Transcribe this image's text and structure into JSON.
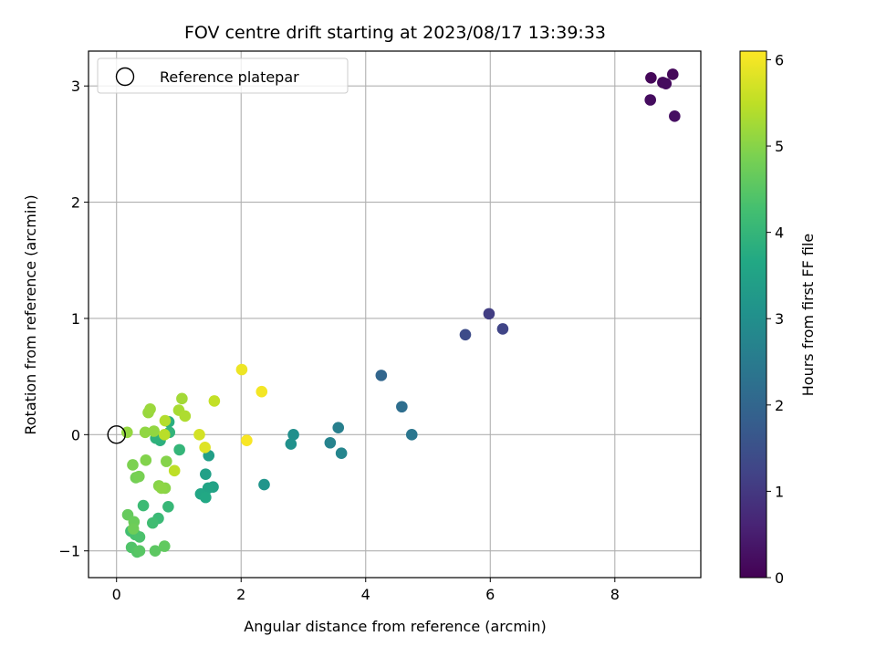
{
  "chart_data": {
    "type": "scatter",
    "title": "FOV centre drift starting at 2023/08/17 13:39:33",
    "xlabel": "Angular distance from reference (arcmin)",
    "ylabel": "Rotation from reference (arcmin)",
    "xlim": [
      -0.45,
      9.38
    ],
    "ylim": [
      -1.23,
      3.3
    ],
    "xticks": [
      0,
      2,
      4,
      6,
      8
    ],
    "yticks": [
      -1,
      0,
      1,
      2,
      3
    ],
    "grid": true,
    "legend": {
      "placement": "top-left",
      "entries": [
        "Reference platepar"
      ]
    },
    "reference_point": {
      "x": 0,
      "y": 0,
      "name": "Reference platepar"
    },
    "colormap": "viridis",
    "colorbar": {
      "label": "Hours from first FF file",
      "range": [
        0,
        6.1
      ],
      "ticks": [
        0,
        1,
        2,
        3,
        4,
        5,
        6
      ]
    },
    "points": [
      {
        "x": 8.58,
        "y": 3.07,
        "c": 0.1
      },
      {
        "x": 8.93,
        "y": 3.1,
        "c": 0.12
      },
      {
        "x": 8.77,
        "y": 3.03,
        "c": 0.15
      },
      {
        "x": 8.82,
        "y": 3.02,
        "c": 0.18
      },
      {
        "x": 8.57,
        "y": 2.88,
        "c": 0.2
      },
      {
        "x": 8.96,
        "y": 2.74,
        "c": 0.25
      },
      {
        "x": 5.98,
        "y": 1.04,
        "c": 1.1
      },
      {
        "x": 6.2,
        "y": 0.91,
        "c": 1.25
      },
      {
        "x": 5.6,
        "y": 0.86,
        "c": 1.4
      },
      {
        "x": 4.25,
        "y": 0.51,
        "c": 2.0
      },
      {
        "x": 4.58,
        "y": 0.24,
        "c": 2.2
      },
      {
        "x": 4.74,
        "y": 0.0,
        "c": 2.4
      },
      {
        "x": 3.56,
        "y": 0.06,
        "c": 2.6
      },
      {
        "x": 3.43,
        "y": -0.07,
        "c": 2.7
      },
      {
        "x": 3.61,
        "y": -0.16,
        "c": 2.75
      },
      {
        "x": 2.84,
        "y": 0.0,
        "c": 3.0
      },
      {
        "x": 2.8,
        "y": -0.08,
        "c": 3.05
      },
      {
        "x": 2.37,
        "y": -0.43,
        "c": 3.15
      },
      {
        "x": 1.48,
        "y": -0.18,
        "c": 3.4
      },
      {
        "x": 1.43,
        "y": -0.34,
        "c": 3.45
      },
      {
        "x": 1.55,
        "y": -0.45,
        "c": 3.5
      },
      {
        "x": 1.47,
        "y": -0.46,
        "c": 3.55
      },
      {
        "x": 1.35,
        "y": -0.51,
        "c": 3.6
      },
      {
        "x": 1.43,
        "y": -0.54,
        "c": 3.65
      },
      {
        "x": 0.84,
        "y": 0.11,
        "c": 3.8
      },
      {
        "x": 0.7,
        "y": -0.05,
        "c": 3.85
      },
      {
        "x": 0.63,
        "y": -0.03,
        "c": 3.9
      },
      {
        "x": 0.85,
        "y": 0.02,
        "c": 3.95
      },
      {
        "x": 1.01,
        "y": -0.13,
        "c": 4.0
      },
      {
        "x": 0.83,
        "y": -0.62,
        "c": 4.05
      },
      {
        "x": 0.67,
        "y": -0.72,
        "c": 4.1
      },
      {
        "x": 0.43,
        "y": -0.61,
        "c": 4.15
      },
      {
        "x": 0.58,
        "y": -0.76,
        "c": 4.2
      },
      {
        "x": 0.23,
        "y": -0.83,
        "c": 4.25
      },
      {
        "x": 0.3,
        "y": -0.86,
        "c": 4.3
      },
      {
        "x": 0.37,
        "y": -0.88,
        "c": 4.35
      },
      {
        "x": 0.24,
        "y": -0.97,
        "c": 4.4
      },
      {
        "x": 0.33,
        "y": -1.01,
        "c": 4.45
      },
      {
        "x": 0.37,
        "y": -1.0,
        "c": 4.5
      },
      {
        "x": 0.62,
        "y": -1.0,
        "c": 4.55
      },
      {
        "x": 0.77,
        "y": -0.96,
        "c": 4.6
      },
      {
        "x": 0.18,
        "y": -0.69,
        "c": 4.65
      },
      {
        "x": 0.28,
        "y": -0.75,
        "c": 4.7
      },
      {
        "x": 0.27,
        "y": -0.81,
        "c": 4.75
      },
      {
        "x": 0.31,
        "y": -0.37,
        "c": 4.8
      },
      {
        "x": 0.36,
        "y": -0.36,
        "c": 4.85
      },
      {
        "x": 0.26,
        "y": -0.26,
        "c": 4.9
      },
      {
        "x": 0.47,
        "y": -0.22,
        "c": 4.95
      },
      {
        "x": 0.8,
        "y": -0.23,
        "c": 4.98
      },
      {
        "x": 0.68,
        "y": -0.44,
        "c": 5.0
      },
      {
        "x": 0.78,
        "y": -0.46,
        "c": 5.02
      },
      {
        "x": 0.72,
        "y": -0.46,
        "c": 5.05
      },
      {
        "x": 0.46,
        "y": 0.02,
        "c": 5.08
      },
      {
        "x": 0.6,
        "y": 0.03,
        "c": 5.1
      },
      {
        "x": 0.17,
        "y": 0.02,
        "c": 5.12
      },
      {
        "x": 0.51,
        "y": 0.19,
        "c": 5.15
      },
      {
        "x": 0.54,
        "y": 0.22,
        "c": 5.18
      },
      {
        "x": 1.05,
        "y": 0.31,
        "c": 5.25
      },
      {
        "x": 1.0,
        "y": 0.21,
        "c": 5.3
      },
      {
        "x": 1.1,
        "y": 0.16,
        "c": 5.35
      },
      {
        "x": 0.78,
        "y": 0.12,
        "c": 5.4
      },
      {
        "x": 0.77,
        "y": 0.0,
        "c": 5.45
      },
      {
        "x": 0.93,
        "y": -0.31,
        "c": 5.5
      },
      {
        "x": 1.57,
        "y": 0.29,
        "c": 5.55
      },
      {
        "x": 1.33,
        "y": 0.0,
        "c": 5.7
      },
      {
        "x": 1.42,
        "y": -0.11,
        "c": 5.8
      },
      {
        "x": 2.01,
        "y": 0.56,
        "c": 5.95
      },
      {
        "x": 2.33,
        "y": 0.37,
        "c": 6.0
      },
      {
        "x": 2.09,
        "y": -0.05,
        "c": 6.05
      }
    ]
  }
}
